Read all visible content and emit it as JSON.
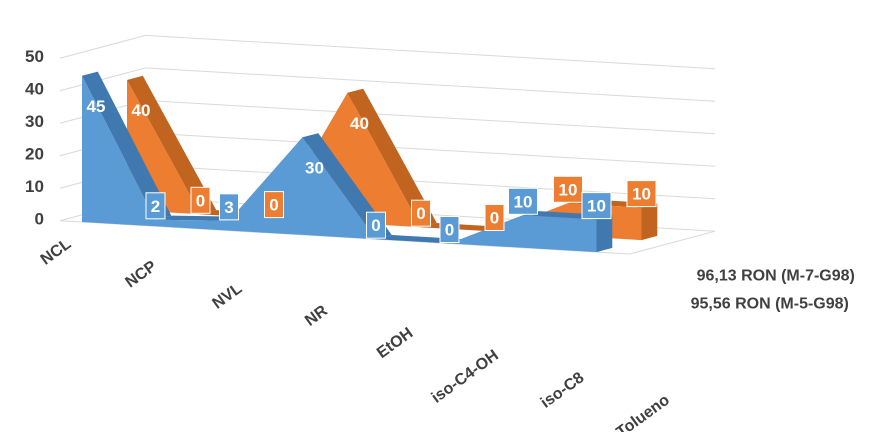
{
  "chart_data": {
    "type": "area",
    "view": "3d",
    "categories": [
      "NCL",
      "NCP",
      "NVL",
      "NR",
      "EtOH",
      "iso-C4-OH",
      "iso-C8",
      "Tolueno"
    ],
    "series": [
      {
        "name": "95,56 RON (M-5-G98)",
        "values": [
          45,
          2,
          3,
          30,
          0,
          0,
          10,
          10
        ],
        "labels": [
          "45",
          "2",
          "3",
          "30",
          "0",
          "0",
          "10",
          "10"
        ],
        "color": "#5b9bd5"
      },
      {
        "name": "96,13 RON (M-7-G98)",
        "values": [
          40,
          0,
          0,
          40,
          0,
          0,
          10,
          10
        ],
        "labels": [
          "40",
          "0",
          "0",
          "40",
          "0",
          "0",
          "10",
          "10"
        ],
        "color": "#ed7d31"
      }
    ],
    "y_ticks": [
      "0",
      "10",
      "20",
      "30",
      "40",
      "50"
    ],
    "ylim": [
      0,
      50
    ],
    "grid": true,
    "legend": "series labels at right end of depth axis"
  }
}
